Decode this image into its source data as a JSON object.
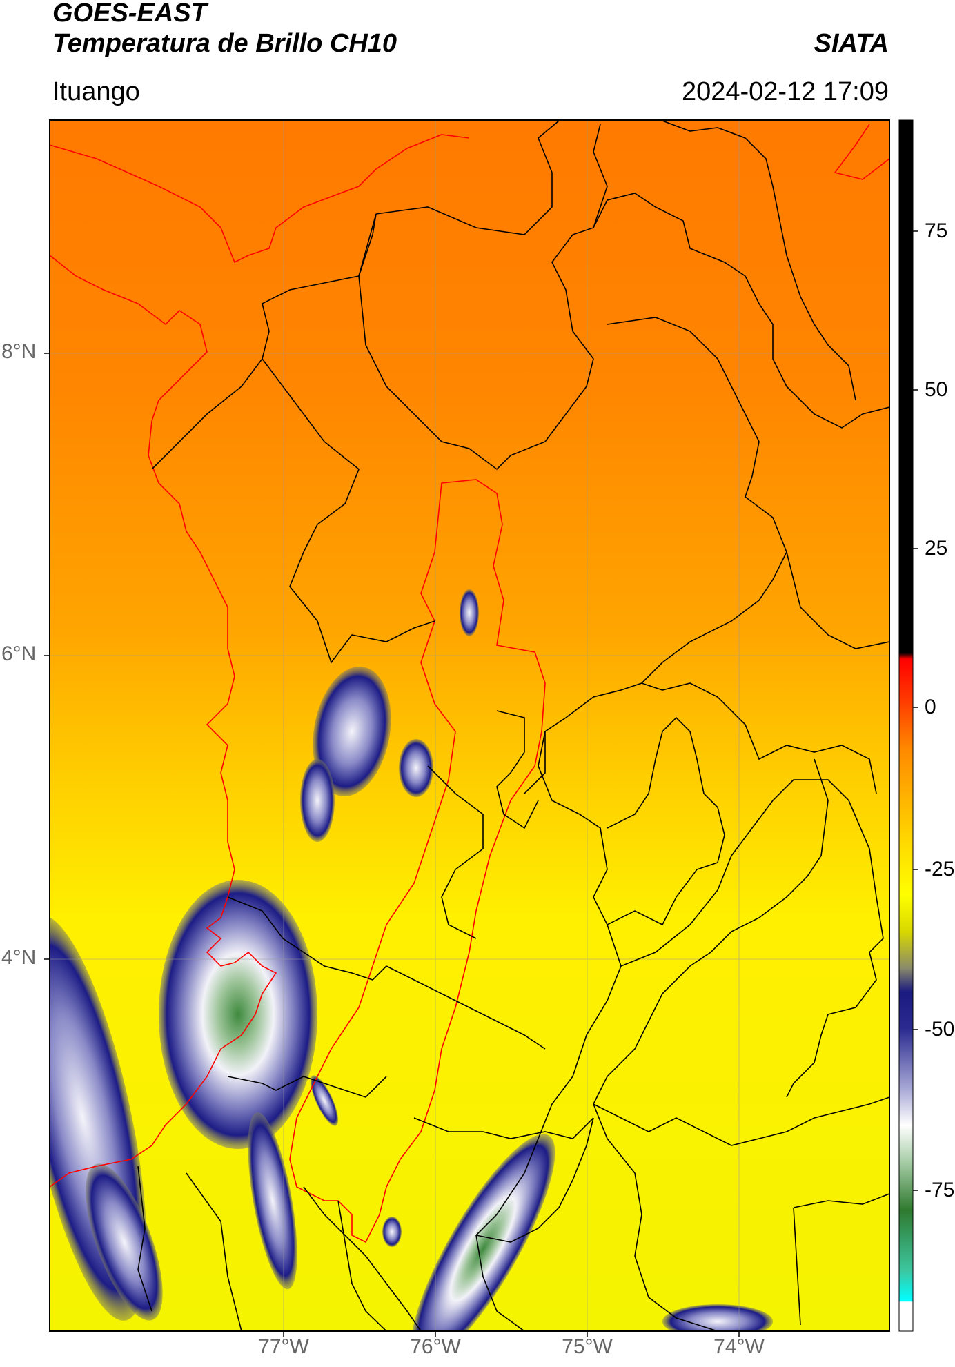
{
  "header": {
    "title_line1": "GOES-EAST",
    "title_line2": "Temperatura de Brillo CH10",
    "brand": "SIATA",
    "region": "Ituango",
    "datetime": "2024-02-12 17:09"
  },
  "map": {
    "lat_ticks": [
      "8°N",
      "6°N",
      "4°N"
    ],
    "lon_ticks": [
      "77°W",
      "76°W",
      "75°W",
      "74°W"
    ],
    "basin_outline_color": "#ff0000",
    "coastline_color": "#ff0000",
    "boundary_color": "#000000"
  },
  "colorbar": {
    "ticks": [
      "75",
      "50",
      "25",
      "0",
      "-25",
      "-50",
      "-75"
    ],
    "colors": {
      "warm_black": "#000000",
      "red": "#ff0000",
      "orange": "#ff7f00",
      "yellow": "#ffff00",
      "olive": "#b6b65a",
      "navy": "#14147f",
      "lavender": "#a5a5d2",
      "white": "#ffffff",
      "green": "#2f7a2f",
      "teal": "#33b38f",
      "cyan": "#00ffff"
    }
  }
}
